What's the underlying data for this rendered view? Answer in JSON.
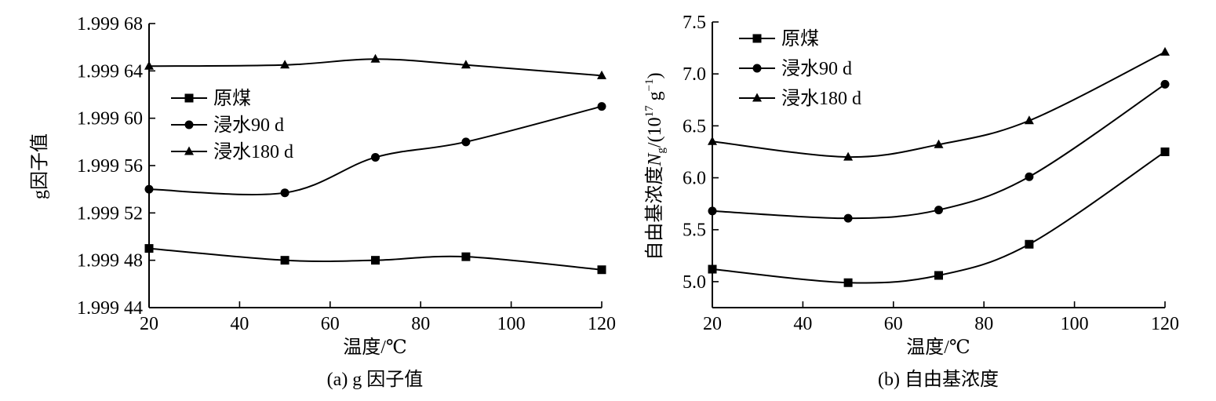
{
  "chart_data": [
    {
      "type": "line",
      "title": "(a) g 因子值",
      "xlabel": "温度/℃",
      "ylabel": "g因子值",
      "xlim": [
        20,
        120
      ],
      "ylim": [
        1.99944,
        1.99968
      ],
      "x_ticks": [
        20,
        40,
        60,
        80,
        100,
        120
      ],
      "x_tick_labels": [
        "20",
        "40",
        "60",
        "80",
        "100",
        "120"
      ],
      "y_ticks": [
        1.99944,
        1.99948,
        1.99952,
        1.99956,
        1.9996,
        1.99964,
        1.99968
      ],
      "y_tick_labels": [
        "1.999 44",
        "1.999 48",
        "1.999 52",
        "1.999 56",
        "1.999 60",
        "1.999 64",
        "1.999 68"
      ],
      "grid": false,
      "legend": "center-left",
      "x": [
        20,
        50,
        70,
        90,
        120
      ],
      "series": [
        {
          "name": "原煤",
          "marker": "square",
          "values": [
            1.99949,
            1.99948,
            1.99948,
            1.999483,
            1.999472
          ]
        },
        {
          "name": "浸水90 d",
          "marker": "circle",
          "values": [
            1.99954,
            1.999537,
            1.999567,
            1.99958,
            1.99961
          ]
        },
        {
          "name": "浸水180 d",
          "marker": "triangle",
          "values": [
            1.999644,
            1.999645,
            1.99965,
            1.999645,
            1.999636
          ]
        }
      ]
    },
    {
      "type": "line",
      "title": "(b) 自由基浓度",
      "xlabel": "温度/℃",
      "ylabel_parts": [
        "自由基浓度",
        "N",
        "g",
        "/(10",
        "17",
        " g",
        "−1",
        ")"
      ],
      "xlim": [
        20,
        120
      ],
      "ylim": [
        4.75,
        7.5
      ],
      "x_ticks": [
        20,
        40,
        60,
        80,
        100,
        120
      ],
      "x_tick_labels": [
        "20",
        "40",
        "60",
        "80",
        "100",
        "120"
      ],
      "y_ticks": [
        5.0,
        5.5,
        6.0,
        6.5,
        7.0,
        7.5
      ],
      "y_tick_labels": [
        "5.0",
        "5.5",
        "6.0",
        "6.5",
        "7.0",
        "7.5"
      ],
      "grid": false,
      "legend": "top-left",
      "x": [
        20,
        50,
        70,
        90,
        120
      ],
      "series": [
        {
          "name": "原煤",
          "marker": "square",
          "values": [
            5.12,
            4.99,
            5.06,
            5.36,
            6.25
          ]
        },
        {
          "name": "浸水90 d",
          "marker": "circle",
          "values": [
            5.68,
            5.61,
            5.69,
            6.01,
            6.9
          ]
        },
        {
          "name": "浸水180 d",
          "marker": "triangle",
          "values": [
            6.35,
            6.2,
            6.32,
            6.55,
            7.21
          ]
        }
      ]
    }
  ]
}
